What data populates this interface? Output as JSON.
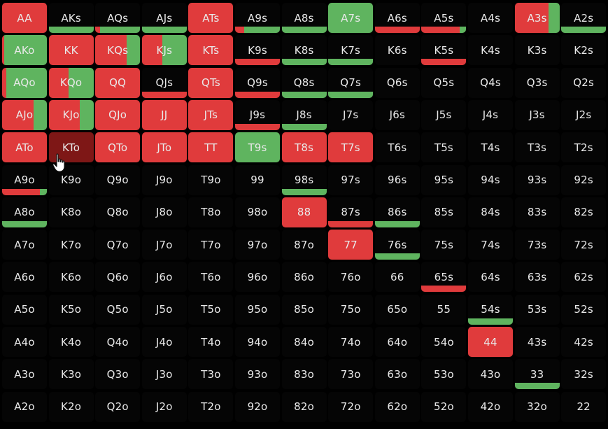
{
  "hover_hand": "KTo",
  "colors": {
    "raise": "#e03b3c",
    "call": "#5fb45f",
    "fold": "#050505",
    "hover_raise": "#7e1716"
  },
  "rows": [
    [
      {
        "hand": "AA",
        "mix": [
          1,
          0
        ]
      },
      {
        "hand": "AKs",
        "mix": [
          0,
          1
        ],
        "style": "bottom"
      },
      {
        "hand": "AQs",
        "mix": [
          0.1,
          0.9
        ],
        "style": "bottom"
      },
      {
        "hand": "AJs",
        "mix": [
          0,
          1
        ],
        "style": "bottom"
      },
      {
        "hand": "ATs",
        "mix": [
          1,
          0
        ]
      },
      {
        "hand": "A9s",
        "mix": [
          0.2,
          0.8
        ],
        "style": "bottom"
      },
      {
        "hand": "A8s",
        "mix": [
          0,
          1
        ],
        "style": "bottom"
      },
      {
        "hand": "A7s",
        "mix": [
          0,
          1
        ]
      },
      {
        "hand": "A6s",
        "mix": [
          1,
          0
        ],
        "style": "bottom"
      },
      {
        "hand": "A5s",
        "mix": [
          0.85,
          0.15
        ],
        "style": "bottom"
      },
      {
        "hand": "A4s",
        "mix": [
          0,
          0
        ]
      },
      {
        "hand": "A3s",
        "mix": [
          0.75,
          0.25
        ]
      },
      {
        "hand": "A2s",
        "mix": [
          0,
          1
        ],
        "style": "bottom"
      }
    ],
    [
      {
        "hand": "AKo",
        "mix": [
          0.05,
          0.95
        ]
      },
      {
        "hand": "KK",
        "mix": [
          1,
          0
        ]
      },
      {
        "hand": "KQs",
        "mix": [
          0.7,
          0.3
        ]
      },
      {
        "hand": "KJs",
        "mix": [
          0.45,
          0.55
        ]
      },
      {
        "hand": "KTs",
        "mix": [
          1,
          0
        ]
      },
      {
        "hand": "K9s",
        "mix": [
          1,
          0
        ],
        "style": "bottom"
      },
      {
        "hand": "K8s",
        "mix": [
          0,
          1
        ],
        "style": "bottom"
      },
      {
        "hand": "K7s",
        "mix": [
          0,
          1
        ],
        "style": "bottom"
      },
      {
        "hand": "K6s",
        "mix": [
          0,
          0
        ]
      },
      {
        "hand": "K5s",
        "mix": [
          1,
          0
        ],
        "style": "bottom"
      },
      {
        "hand": "K4s",
        "mix": [
          0,
          0
        ]
      },
      {
        "hand": "K3s",
        "mix": [
          0,
          0
        ]
      },
      {
        "hand": "K2s",
        "mix": [
          0,
          0
        ]
      }
    ],
    [
      {
        "hand": "AQo",
        "mix": [
          0.1,
          0.9
        ]
      },
      {
        "hand": "KQo",
        "mix": [
          0.45,
          0.55
        ]
      },
      {
        "hand": "QQ",
        "mix": [
          1,
          0
        ]
      },
      {
        "hand": "QJs",
        "mix": [
          1,
          0
        ],
        "style": "bottom"
      },
      {
        "hand": "QTs",
        "mix": [
          1,
          0
        ]
      },
      {
        "hand": "Q9s",
        "mix": [
          1,
          0
        ],
        "style": "bottom"
      },
      {
        "hand": "Q8s",
        "mix": [
          0,
          1
        ],
        "style": "bottom"
      },
      {
        "hand": "Q7s",
        "mix": [
          0,
          1
        ],
        "style": "bottom"
      },
      {
        "hand": "Q6s",
        "mix": [
          0,
          0
        ]
      },
      {
        "hand": "Q5s",
        "mix": [
          0,
          0
        ]
      },
      {
        "hand": "Q4s",
        "mix": [
          0,
          0
        ]
      },
      {
        "hand": "Q3s",
        "mix": [
          0,
          0
        ]
      },
      {
        "hand": "Q2s",
        "mix": [
          0,
          0
        ]
      }
    ],
    [
      {
        "hand": "AJo",
        "mix": [
          0.7,
          0.3
        ]
      },
      {
        "hand": "KJo",
        "mix": [
          0.7,
          0.3
        ]
      },
      {
        "hand": "QJo",
        "mix": [
          1,
          0
        ]
      },
      {
        "hand": "JJ",
        "mix": [
          1,
          0
        ]
      },
      {
        "hand": "JTs",
        "mix": [
          1,
          0
        ]
      },
      {
        "hand": "J9s",
        "mix": [
          1,
          0
        ],
        "style": "bottom"
      },
      {
        "hand": "J8s",
        "mix": [
          0,
          1
        ],
        "style": "bottom"
      },
      {
        "hand": "J7s",
        "mix": [
          0,
          0
        ]
      },
      {
        "hand": "J6s",
        "mix": [
          0,
          0
        ]
      },
      {
        "hand": "J5s",
        "mix": [
          0,
          0
        ]
      },
      {
        "hand": "J4s",
        "mix": [
          0,
          0
        ]
      },
      {
        "hand": "J3s",
        "mix": [
          0,
          0
        ]
      },
      {
        "hand": "J2s",
        "mix": [
          0,
          0
        ]
      }
    ],
    [
      {
        "hand": "ATo",
        "mix": [
          1,
          0
        ]
      },
      {
        "hand": "KTo",
        "mix": [
          1,
          0
        ]
      },
      {
        "hand": "QTo",
        "mix": [
          1,
          0
        ]
      },
      {
        "hand": "JTo",
        "mix": [
          1,
          0
        ]
      },
      {
        "hand": "TT",
        "mix": [
          1,
          0
        ]
      },
      {
        "hand": "T9s",
        "mix": [
          0,
          1
        ]
      },
      {
        "hand": "T8s",
        "mix": [
          1,
          0
        ]
      },
      {
        "hand": "T7s",
        "mix": [
          1,
          0
        ]
      },
      {
        "hand": "T6s",
        "mix": [
          0,
          0
        ]
      },
      {
        "hand": "T5s",
        "mix": [
          0,
          0
        ]
      },
      {
        "hand": "T4s",
        "mix": [
          0,
          0
        ]
      },
      {
        "hand": "T3s",
        "mix": [
          0,
          0
        ]
      },
      {
        "hand": "T2s",
        "mix": [
          0,
          0
        ]
      }
    ],
    [
      {
        "hand": "A9o",
        "mix": [
          0.85,
          0.15
        ],
        "style": "bottom"
      },
      {
        "hand": "K9o",
        "mix": [
          0,
          0
        ]
      },
      {
        "hand": "Q9o",
        "mix": [
          0,
          0
        ]
      },
      {
        "hand": "J9o",
        "mix": [
          0,
          0
        ]
      },
      {
        "hand": "T9o",
        "mix": [
          0,
          0
        ]
      },
      {
        "hand": "99",
        "mix": [
          0,
          0
        ]
      },
      {
        "hand": "98s",
        "mix": [
          0,
          1
        ],
        "style": "bottom"
      },
      {
        "hand": "97s",
        "mix": [
          0,
          0
        ]
      },
      {
        "hand": "96s",
        "mix": [
          0,
          0
        ]
      },
      {
        "hand": "95s",
        "mix": [
          0,
          0
        ]
      },
      {
        "hand": "94s",
        "mix": [
          0,
          0
        ]
      },
      {
        "hand": "93s",
        "mix": [
          0,
          0
        ]
      },
      {
        "hand": "92s",
        "mix": [
          0,
          0
        ]
      }
    ],
    [
      {
        "hand": "A8o",
        "mix": [
          0,
          1
        ],
        "style": "bottom"
      },
      {
        "hand": "K8o",
        "mix": [
          0,
          0
        ]
      },
      {
        "hand": "Q8o",
        "mix": [
          0,
          0
        ]
      },
      {
        "hand": "J8o",
        "mix": [
          0,
          0
        ]
      },
      {
        "hand": "T8o",
        "mix": [
          0,
          0
        ]
      },
      {
        "hand": "98o",
        "mix": [
          0,
          0
        ]
      },
      {
        "hand": "88",
        "mix": [
          1,
          0
        ]
      },
      {
        "hand": "87s",
        "mix": [
          1,
          0
        ],
        "style": "bottom"
      },
      {
        "hand": "86s",
        "mix": [
          0,
          1
        ],
        "style": "bottom"
      },
      {
        "hand": "85s",
        "mix": [
          0,
          0
        ]
      },
      {
        "hand": "84s",
        "mix": [
          0,
          0
        ]
      },
      {
        "hand": "83s",
        "mix": [
          0,
          0
        ]
      },
      {
        "hand": "82s",
        "mix": [
          0,
          0
        ]
      }
    ],
    [
      {
        "hand": "A7o",
        "mix": [
          0,
          0
        ]
      },
      {
        "hand": "K7o",
        "mix": [
          0,
          0
        ]
      },
      {
        "hand": "Q7o",
        "mix": [
          0,
          0
        ]
      },
      {
        "hand": "J7o",
        "mix": [
          0,
          0
        ]
      },
      {
        "hand": "T7o",
        "mix": [
          0,
          0
        ]
      },
      {
        "hand": "97o",
        "mix": [
          0,
          0
        ]
      },
      {
        "hand": "87o",
        "mix": [
          0,
          0
        ]
      },
      {
        "hand": "77",
        "mix": [
          1,
          0
        ]
      },
      {
        "hand": "76s",
        "mix": [
          0,
          1
        ],
        "style": "bottom"
      },
      {
        "hand": "75s",
        "mix": [
          0,
          0
        ]
      },
      {
        "hand": "74s",
        "mix": [
          0,
          0
        ]
      },
      {
        "hand": "73s",
        "mix": [
          0,
          0
        ]
      },
      {
        "hand": "72s",
        "mix": [
          0,
          0
        ]
      }
    ],
    [
      {
        "hand": "A6o",
        "mix": [
          0,
          0
        ]
      },
      {
        "hand": "K6o",
        "mix": [
          0,
          0
        ]
      },
      {
        "hand": "Q6o",
        "mix": [
          0,
          0
        ]
      },
      {
        "hand": "J6o",
        "mix": [
          0,
          0
        ]
      },
      {
        "hand": "T6o",
        "mix": [
          0,
          0
        ]
      },
      {
        "hand": "96o",
        "mix": [
          0,
          0
        ]
      },
      {
        "hand": "86o",
        "mix": [
          0,
          0
        ]
      },
      {
        "hand": "76o",
        "mix": [
          0,
          0
        ]
      },
      {
        "hand": "66",
        "mix": [
          0,
          0
        ]
      },
      {
        "hand": "65s",
        "mix": [
          1,
          0
        ],
        "style": "bottom"
      },
      {
        "hand": "64s",
        "mix": [
          0,
          0
        ]
      },
      {
        "hand": "63s",
        "mix": [
          0,
          0
        ]
      },
      {
        "hand": "62s",
        "mix": [
          0,
          0
        ]
      }
    ],
    [
      {
        "hand": "A5o",
        "mix": [
          0,
          0
        ]
      },
      {
        "hand": "K5o",
        "mix": [
          0,
          0
        ]
      },
      {
        "hand": "Q5o",
        "mix": [
          0,
          0
        ]
      },
      {
        "hand": "J5o",
        "mix": [
          0,
          0
        ]
      },
      {
        "hand": "T5o",
        "mix": [
          0,
          0
        ]
      },
      {
        "hand": "95o",
        "mix": [
          0,
          0
        ]
      },
      {
        "hand": "85o",
        "mix": [
          0,
          0
        ]
      },
      {
        "hand": "75o",
        "mix": [
          0,
          0
        ]
      },
      {
        "hand": "65o",
        "mix": [
          0,
          0
        ]
      },
      {
        "hand": "55",
        "mix": [
          0,
          0
        ]
      },
      {
        "hand": "54s",
        "mix": [
          0,
          1
        ],
        "style": "bottom"
      },
      {
        "hand": "53s",
        "mix": [
          0,
          0
        ]
      },
      {
        "hand": "52s",
        "mix": [
          0,
          0
        ]
      }
    ],
    [
      {
        "hand": "A4o",
        "mix": [
          0,
          0
        ]
      },
      {
        "hand": "K4o",
        "mix": [
          0,
          0
        ]
      },
      {
        "hand": "Q4o",
        "mix": [
          0,
          0
        ]
      },
      {
        "hand": "J4o",
        "mix": [
          0,
          0
        ]
      },
      {
        "hand": "T4o",
        "mix": [
          0,
          0
        ]
      },
      {
        "hand": "94o",
        "mix": [
          0,
          0
        ]
      },
      {
        "hand": "84o",
        "mix": [
          0,
          0
        ]
      },
      {
        "hand": "74o",
        "mix": [
          0,
          0
        ]
      },
      {
        "hand": "64o",
        "mix": [
          0,
          0
        ]
      },
      {
        "hand": "54o",
        "mix": [
          0,
          0
        ]
      },
      {
        "hand": "44",
        "mix": [
          1,
          0
        ]
      },
      {
        "hand": "43s",
        "mix": [
          0,
          0
        ]
      },
      {
        "hand": "42s",
        "mix": [
          0,
          0
        ]
      }
    ],
    [
      {
        "hand": "A3o",
        "mix": [
          0,
          0
        ]
      },
      {
        "hand": "K3o",
        "mix": [
          0,
          0
        ]
      },
      {
        "hand": "Q3o",
        "mix": [
          0,
          0
        ]
      },
      {
        "hand": "J3o",
        "mix": [
          0,
          0
        ]
      },
      {
        "hand": "T3o",
        "mix": [
          0,
          0
        ]
      },
      {
        "hand": "93o",
        "mix": [
          0,
          0
        ]
      },
      {
        "hand": "83o",
        "mix": [
          0,
          0
        ]
      },
      {
        "hand": "73o",
        "mix": [
          0,
          0
        ]
      },
      {
        "hand": "63o",
        "mix": [
          0,
          0
        ]
      },
      {
        "hand": "53o",
        "mix": [
          0,
          0
        ]
      },
      {
        "hand": "43o",
        "mix": [
          0,
          0
        ]
      },
      {
        "hand": "33",
        "mix": [
          0,
          1
        ],
        "style": "bottom"
      },
      {
        "hand": "32s",
        "mix": [
          0,
          0
        ]
      }
    ],
    [
      {
        "hand": "A2o",
        "mix": [
          0,
          0
        ]
      },
      {
        "hand": "K2o",
        "mix": [
          0,
          0
        ]
      },
      {
        "hand": "Q2o",
        "mix": [
          0,
          0
        ]
      },
      {
        "hand": "J2o",
        "mix": [
          0,
          0
        ]
      },
      {
        "hand": "T2o",
        "mix": [
          0,
          0
        ]
      },
      {
        "hand": "92o",
        "mix": [
          0,
          0
        ]
      },
      {
        "hand": "82o",
        "mix": [
          0,
          0
        ]
      },
      {
        "hand": "72o",
        "mix": [
          0,
          0
        ]
      },
      {
        "hand": "62o",
        "mix": [
          0,
          0
        ]
      },
      {
        "hand": "52o",
        "mix": [
          0,
          0
        ]
      },
      {
        "hand": "42o",
        "mix": [
          0,
          0
        ]
      },
      {
        "hand": "32o",
        "mix": [
          0,
          0
        ]
      },
      {
        "hand": "22",
        "mix": [
          0,
          0
        ]
      }
    ]
  ]
}
